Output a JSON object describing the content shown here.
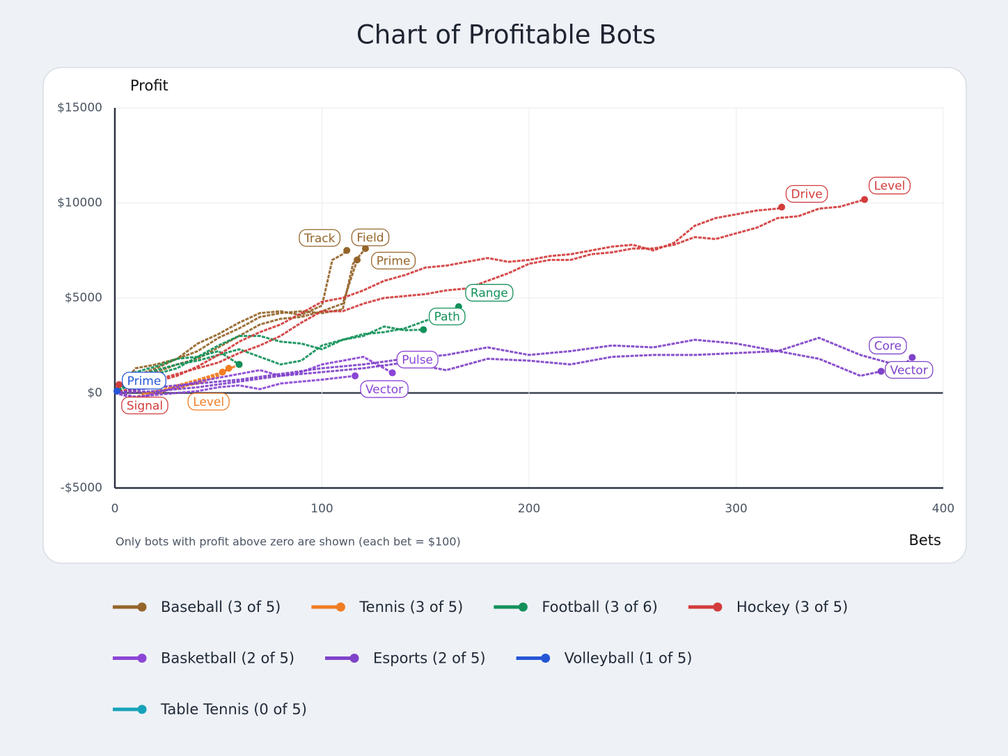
{
  "chart_data": {
    "type": "line",
    "title": "Chart of Profitable Bots",
    "y_label": "Profit",
    "x_label": "Bets",
    "note": "Only bots with profit above zero are shown (each bet = $100)",
    "xlim": [
      0,
      400
    ],
    "xticks": [
      0,
      100,
      200,
      300,
      400
    ],
    "ylim": [
      -5000,
      15000
    ],
    "yticks": [
      {
        "value": -5000,
        "label": "-$5000"
      },
      {
        "value": 0,
        "label": "$0"
      },
      {
        "value": 5000,
        "label": "$5000"
      },
      {
        "value": 10000,
        "label": "$10000"
      },
      {
        "value": 15000,
        "label": "$15000"
      }
    ],
    "grid": true,
    "groups": [
      {
        "name": "Baseball (3 of 5)",
        "color": "#94652a",
        "bots": [
          {
            "label": "Track",
            "x": [
              0,
              10,
              20,
              30,
              40,
              50,
              60,
              70,
              80,
              90,
              100,
              105,
              110,
              112
            ],
            "values": [
              0,
              1300,
              1500,
              1800,
              2600,
              3100,
              3700,
              4200,
              4300,
              4100,
              4600,
              7000,
              7300,
              7500
            ]
          },
          {
            "label": "Field",
            "x": [
              0,
              10,
              20,
              30,
              40,
              50,
              60,
              70,
              80,
              90,
              100,
              110,
              115,
              118,
              121
            ],
            "values": [
              0,
              900,
              1300,
              1800,
              2200,
              2900,
              3400,
              4000,
              4200,
              4300,
              4200,
              4400,
              6800,
              7200,
              7600
            ]
          },
          {
            "label": "Prime",
            "x": [
              0,
              10,
              20,
              30,
              40,
              50,
              60,
              70,
              80,
              90,
              100,
              110,
              117
            ],
            "values": [
              0,
              700,
              1100,
              1500,
              1800,
              2400,
              3000,
              3600,
              3900,
              4000,
              4300,
              4700,
              7000
            ]
          }
        ]
      },
      {
        "name": "Tennis (3 of 5)",
        "color": "#f07c23",
        "bots": [
          {
            "label": "Level",
            "x": [
              0,
              10,
              20,
              30,
              40,
              50,
              55
            ],
            "values": [
              0,
              -200,
              100,
              300,
              500,
              900,
              1300
            ]
          },
          {
            "x": [
              0,
              10,
              20,
              30,
              40,
              50,
              60
            ],
            "values": [
              0,
              200,
              400,
              200,
              600,
              1000,
              1500
            ]
          },
          {
            "x": [
              0,
              10,
              20,
              30,
              40,
              52
            ],
            "values": [
              0,
              100,
              -100,
              400,
              700,
              1100
            ]
          }
        ]
      },
      {
        "name": "Football (3 of 6)",
        "color": "#13915a",
        "bots": [
          {
            "label": "Range",
            "x": [
              0,
              10,
              20,
              30,
              40,
              50,
              60,
              70,
              80,
              90,
              100,
              110,
              120,
              130,
              140,
              150,
              160,
              166
            ],
            "values": [
              0,
              800,
              1200,
              1500,
              1700,
              2000,
              2300,
              1900,
              1500,
              1700,
              2500,
              2800,
              3100,
              3200,
              3400,
              3800,
              4200,
              4540
            ]
          },
          {
            "label": "Path",
            "x": [
              0,
              10,
              20,
              30,
              40,
              50,
              60,
              70,
              80,
              90,
              100,
              110,
              120,
              130,
              140,
              149
            ],
            "values": [
              0,
              1100,
              1400,
              1800,
              1900,
              2500,
              3000,
              3000,
              2700,
              2600,
              2300,
              2800,
              3000,
              3500,
              3300,
              3330
            ]
          },
          {
            "x": [
              0,
              10,
              20,
              30,
              40,
              50,
              60
            ],
            "values": [
              0,
              600,
              1000,
              1300,
              1900,
              2200,
              1500
            ]
          }
        ]
      },
      {
        "name": "Hockey (3 of 5)",
        "color": "#d33c3c",
        "bots": [
          {
            "label": "Drive",
            "x": [
              0,
              10,
              20,
              30,
              40,
              50,
              60,
              70,
              80,
              90,
              100,
              110,
              120,
              130,
              140,
              150,
              160,
              170,
              180,
              190,
              200,
              210,
              220,
              230,
              240,
              250,
              260,
              270,
              280,
              290,
              300,
              310,
              320,
              322
            ],
            "values": [
              0,
              200,
              600,
              900,
              1400,
              2000,
              2700,
              3200,
              3600,
              4200,
              4800,
              5000,
              5400,
              5900,
              6200,
              6600,
              6700,
              6900,
              7100,
              6900,
              7000,
              7200,
              7300,
              7500,
              7700,
              7800,
              7500,
              7900,
              8800,
              9200,
              9400,
              9600,
              9700,
              9780
            ]
          },
          {
            "label": "Level",
            "x": [
              0,
              10,
              20,
              30,
              40,
              50,
              60,
              70,
              80,
              90,
              100,
              110,
              120,
              130,
              140,
              150,
              160,
              170,
              180,
              190,
              200,
              210,
              220,
              230,
              240,
              250,
              260,
              270,
              280,
              290,
              300,
              310,
              320,
              330,
              340,
              350,
              362
            ],
            "values": [
              0,
              300,
              700,
              1000,
              1300,
              1600,
              2100,
              2500,
              3000,
              3700,
              4300,
              4300,
              4700,
              5000,
              5100,
              5200,
              5400,
              5500,
              5900,
              6300,
              6800,
              7000,
              7000,
              7300,
              7400,
              7600,
              7600,
              7800,
              8200,
              8100,
              8400,
              8700,
              9200,
              9300,
              9700,
              9800,
              10180
            ]
          },
          {
            "label": "Signal",
            "x": [
              0,
              1,
              2
            ],
            "values": [
              0,
              300,
              440
            ]
          }
        ]
      },
      {
        "name": "Basketball (2 of 5)",
        "color": "#8b45d6",
        "bots": [
          {
            "label": "Pulse",
            "x": [
              0,
              10,
              20,
              30,
              40,
              50,
              60,
              70,
              80,
              90,
              100,
              110,
              120,
              134
            ],
            "values": [
              0,
              -300,
              0,
              300,
              600,
              800,
              1000,
              1200,
              900,
              1100,
              1500,
              1700,
              1900,
              1060
            ]
          },
          {
            "label": "Vector",
            "x": [
              0,
              10,
              20,
              30,
              40,
              50,
              60,
              70,
              80,
              90,
              100,
              116
            ],
            "values": [
              0,
              -200,
              -100,
              0,
              100,
              300,
              400,
              200,
              500,
              600,
              700,
              900
            ]
          }
        ]
      },
      {
        "name": "Esports (2 of 5)",
        "color": "#7f42c9",
        "bots": [
          {
            "label": "Core",
            "x": [
              0,
              20,
              40,
              60,
              80,
              100,
              120,
              140,
              160,
              180,
              200,
              220,
              240,
              260,
              280,
              300,
              320,
              340,
              360,
              380,
              385
            ],
            "values": [
              0,
              300,
              500,
              700,
              1000,
              1300,
              1500,
              1800,
              2000,
              2400,
              2000,
              2200,
              2500,
              2400,
              2800,
              2600,
              2200,
              2900,
              2000,
              1400,
              1870
            ]
          },
          {
            "label": "Vector",
            "x": [
              0,
              20,
              40,
              60,
              80,
              100,
              120,
              140,
              160,
              180,
              200,
              220,
              240,
              260,
              280,
              300,
              320,
              340,
              360,
              370
            ],
            "values": [
              0,
              100,
              300,
              600,
              900,
              1100,
              1300,
              1600,
              1200,
              1800,
              1700,
              1500,
              1900,
              2000,
              2000,
              2100,
              2200,
              1800,
              900,
              1140
            ]
          }
        ]
      },
      {
        "name": "Volleyball (1 of 5)",
        "color": "#2456d6",
        "bots": [
          {
            "label": "Prime",
            "x": [
              0,
              1
            ],
            "values": [
              0,
              100
            ]
          }
        ]
      },
      {
        "name": "Table Tennis (0 of 5)",
        "color": "#16a2b8",
        "bots": []
      }
    ]
  }
}
